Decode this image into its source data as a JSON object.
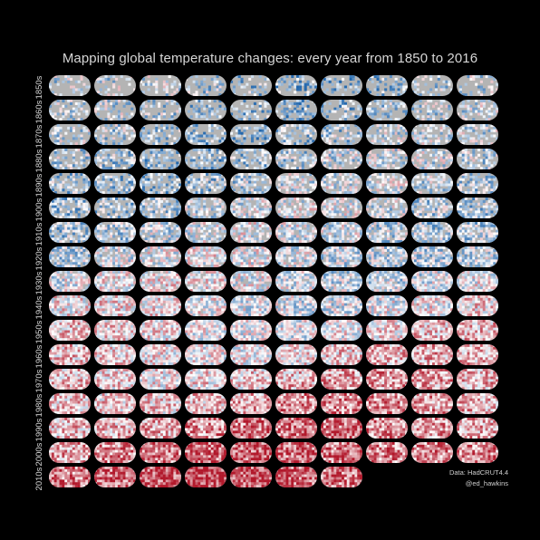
{
  "title": "Mapping global temperature changes: every year from 1850 to 2016",
  "decades": [
    "1850s",
    "1860s",
    "1870s",
    "1880s",
    "1890s",
    "1900s",
    "1910s",
    "1920s",
    "1930s",
    "1940s",
    "1950s",
    "1960s",
    "1970s",
    "1980s",
    "1990s",
    "2000s",
    "2010s"
  ],
  "years": {
    "first": 1850,
    "last": 2016
  },
  "credits": {
    "data_source": "Data: HadCRUT4.4",
    "author": "@ed_hawkins"
  },
  "colors": {
    "background": "#000000",
    "cool": "#2166ac",
    "neutral": "#ffffff",
    "warm": "#b2182b",
    "missing_data": "#b4b4b4"
  }
}
